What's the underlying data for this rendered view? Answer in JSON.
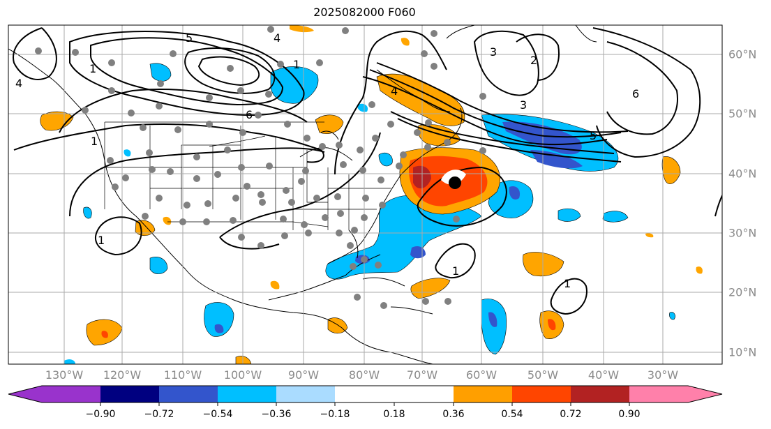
{
  "title": "2025082000 F060",
  "longitude_labels": [
    "130°W",
    "120°W",
    "110°W",
    "100°W",
    "90°W",
    "80°W",
    "70°W",
    "60°W",
    "50°W",
    "40°W",
    "30°W"
  ],
  "latitude_labels": [
    "60°N",
    "50°N",
    "40°N",
    "30°N",
    "20°N",
    "10°N"
  ],
  "colorbar": {
    "ticks": [
      "−0.90",
      "−0.72",
      "−0.54",
      "−0.36",
      "−0.18",
      "0.18",
      "0.36",
      "0.54",
      "0.72",
      "0.90"
    ],
    "colors": [
      "#9933cc",
      "#000080",
      "#3355cc",
      "#00bfff",
      "#aadcff",
      "#ffffff",
      "#ffe680",
      "#ff9f00",
      "#ff4500",
      "#b22222",
      "#ff80aa"
    ]
  },
  "contour_labels": [
    "1",
    "2",
    "3",
    "4",
    "5",
    "6"
  ],
  "colors": {
    "positive_mid": "#ffa500",
    "positive_high": "#ff4500",
    "positive_max": "#b22222",
    "negative_mid": "#00bfff",
    "negative_high": "#3355cc",
    "station_dot": "#808080",
    "grid": "#aaaaaa"
  }
}
